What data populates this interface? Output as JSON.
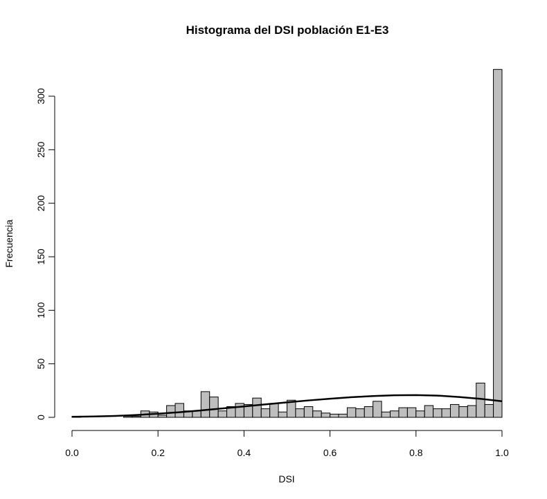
{
  "chart_data": {
    "type": "bar",
    "title": "Histograma del DSI población E1-E3",
    "xlabel": "DSI",
    "ylabel": "Frecuencia",
    "xlim": [
      0,
      1
    ],
    "ylim": [
      0,
      325
    ],
    "x_ticks": [
      "0.0",
      "0.2",
      "0.4",
      "0.6",
      "0.8",
      "1.0"
    ],
    "y_ticks": [
      "0",
      "50",
      "100",
      "150",
      "200",
      "250",
      "300"
    ],
    "bin_width": 0.02,
    "bin_starts": [
      0.0,
      0.02,
      0.04,
      0.06,
      0.08,
      0.1,
      0.12,
      0.14,
      0.16,
      0.18,
      0.2,
      0.22,
      0.24,
      0.26,
      0.28,
      0.3,
      0.32,
      0.34,
      0.36,
      0.38,
      0.4,
      0.42,
      0.44,
      0.46,
      0.48,
      0.5,
      0.52,
      0.54,
      0.56,
      0.58,
      0.6,
      0.62,
      0.64,
      0.66,
      0.68,
      0.7,
      0.72,
      0.74,
      0.76,
      0.78,
      0.8,
      0.82,
      0.84,
      0.86,
      0.88,
      0.9,
      0.92,
      0.94,
      0.96,
      0.98
    ],
    "values": [
      1,
      0,
      0,
      0,
      0,
      0,
      1,
      1,
      6,
      5,
      2,
      11,
      13,
      6,
      6,
      24,
      19,
      6,
      10,
      13,
      12,
      18,
      8,
      13,
      5,
      16,
      8,
      10,
      6,
      4,
      3,
      3,
      9,
      8,
      10,
      15,
      5,
      6,
      9,
      9,
      6,
      11,
      8,
      8,
      12,
      10,
      11,
      32,
      12,
      325
    ],
    "density_curve": {
      "name": "",
      "x": [
        0.0,
        0.05,
        0.1,
        0.15,
        0.2,
        0.25,
        0.3,
        0.35,
        0.4,
        0.45,
        0.5,
        0.55,
        0.6,
        0.65,
        0.7,
        0.75,
        0.8,
        0.85,
        0.9,
        0.95,
        1.0
      ],
      "y": [
        0.5,
        0.8,
        1.3,
        2.2,
        3.4,
        4.8,
        6.5,
        8.3,
        10.2,
        12.1,
        14.0,
        15.8,
        17.4,
        18.8,
        19.9,
        20.6,
        20.8,
        20.3,
        19.0,
        17.3,
        15.0
      ]
    },
    "grid": false,
    "legend": "none"
  }
}
